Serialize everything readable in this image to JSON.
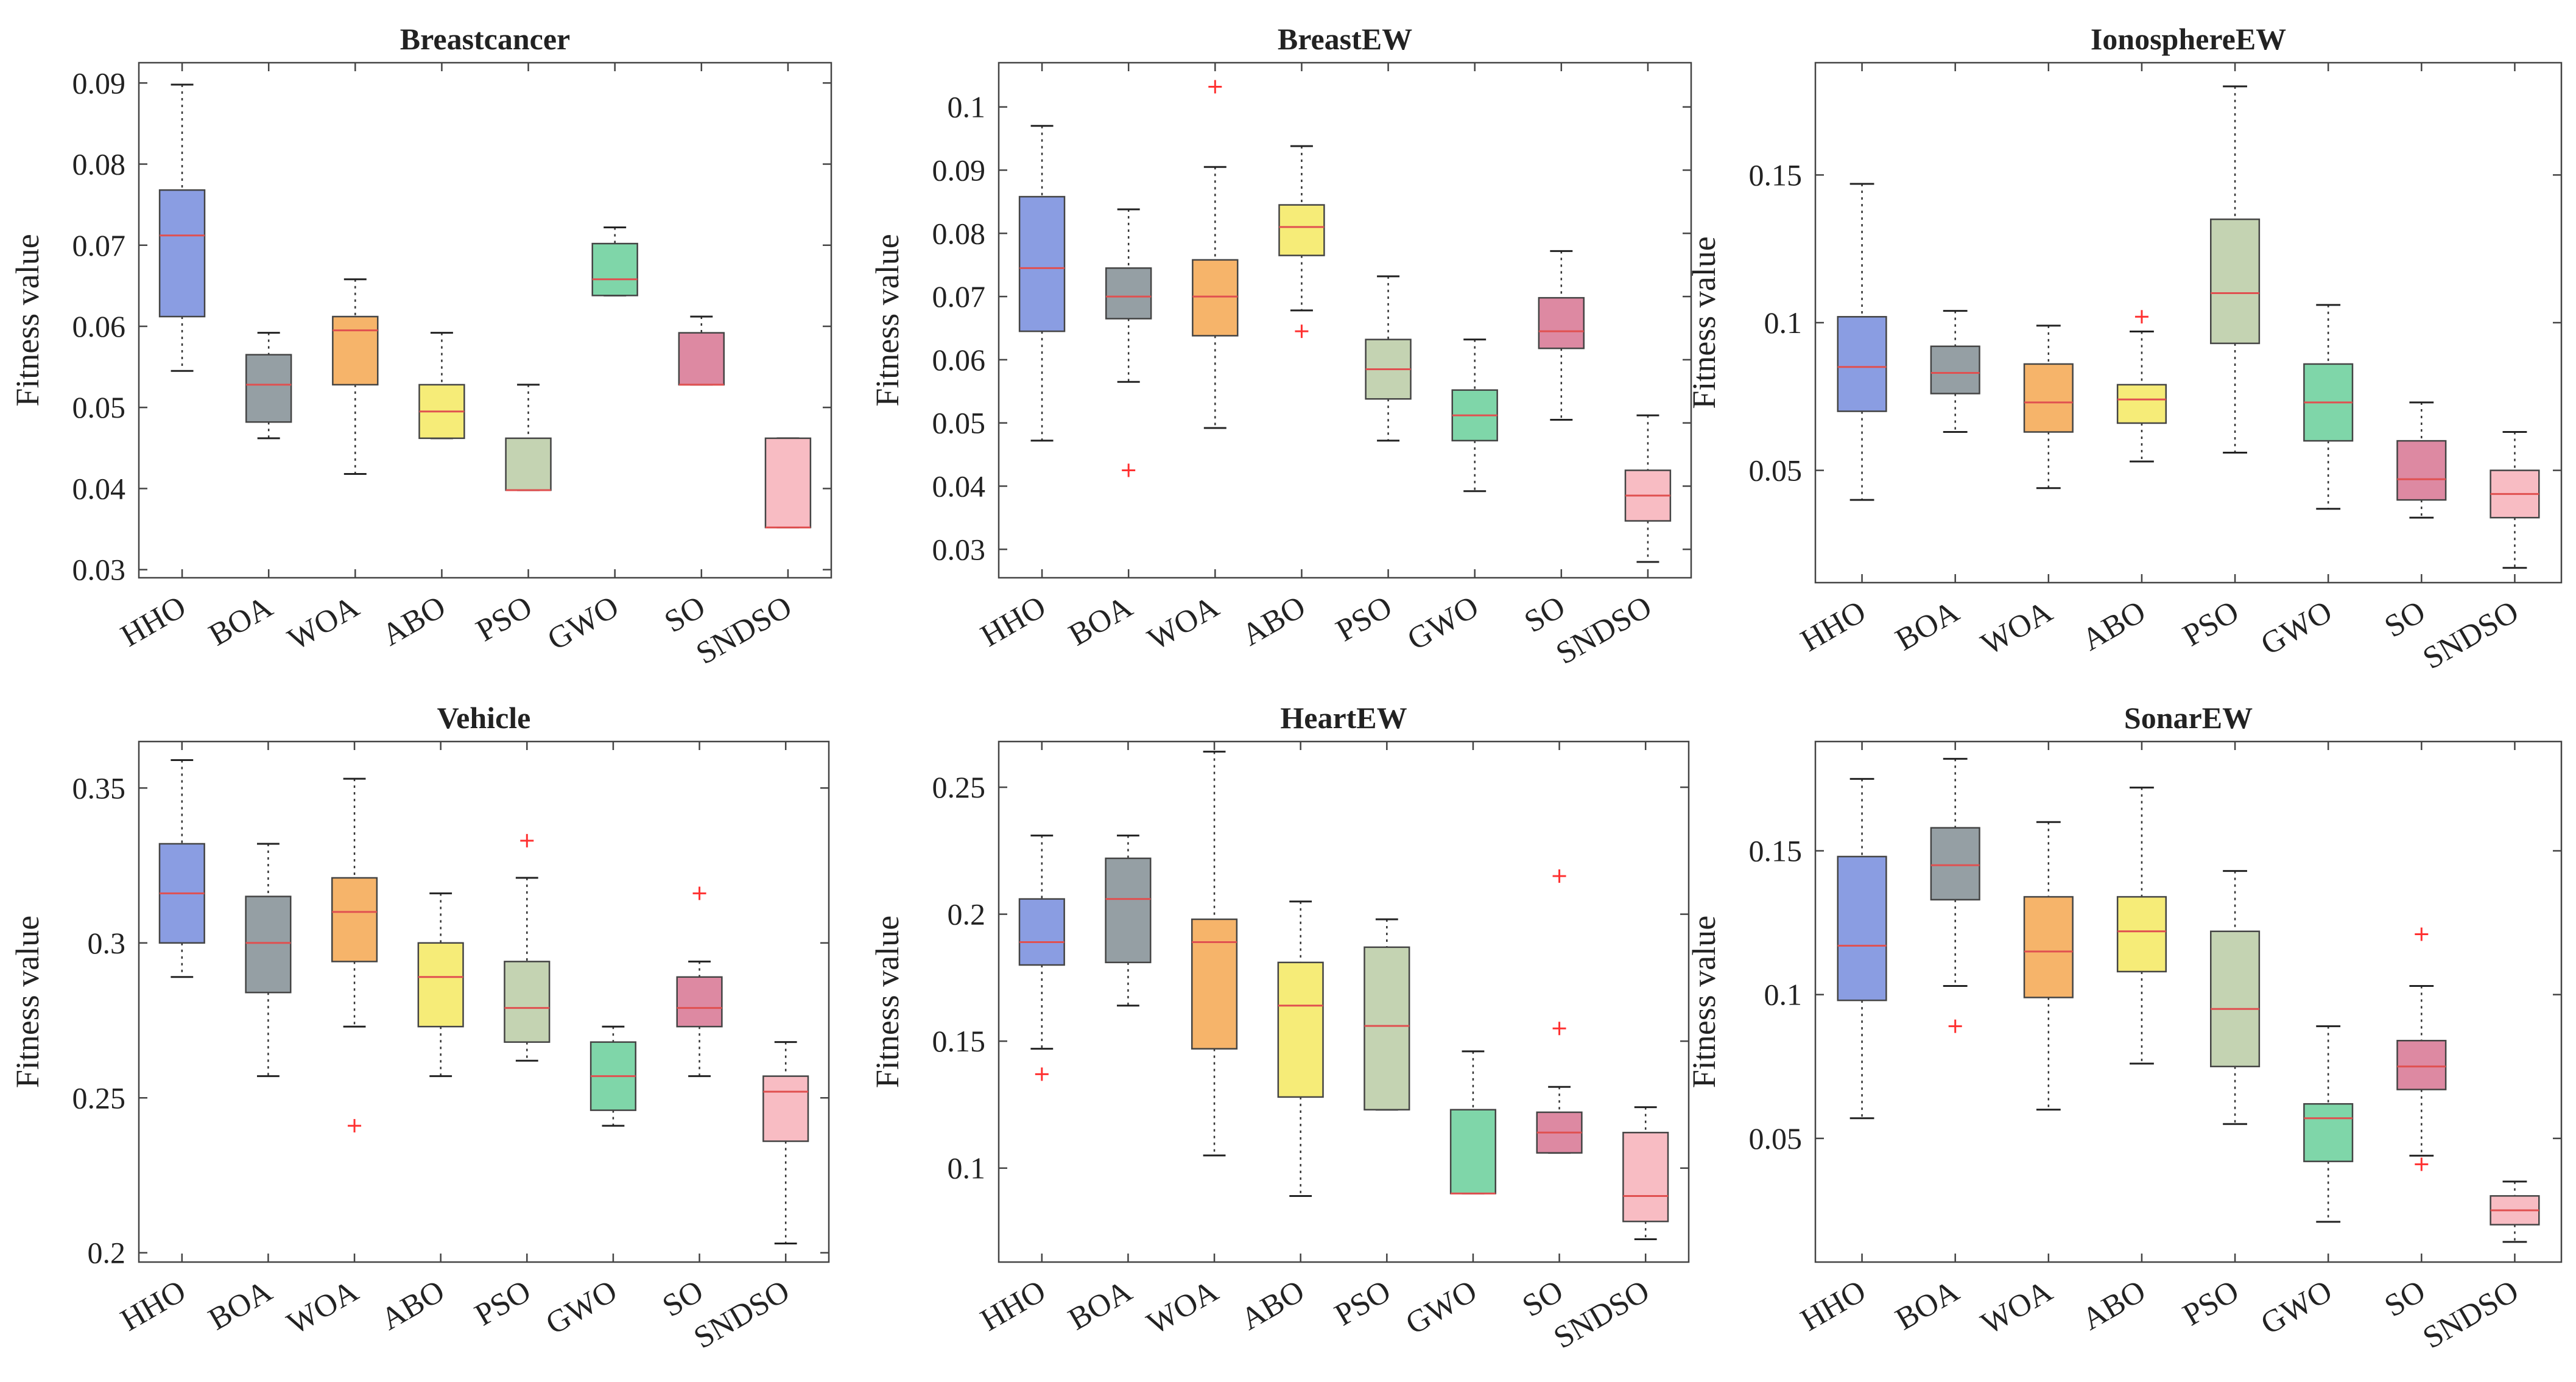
{
  "figure": {
    "layout": "2 rows x 3 columns",
    "median_color": "#e05050",
    "outlier_color": "#ff3030"
  },
  "chart_data": [
    {
      "type": "box",
      "title": "Breastcancer",
      "ylabel": "Fitness value",
      "ylim": [
        0.029,
        0.0925
      ],
      "yticks": [
        0.03,
        0.04,
        0.05,
        0.06,
        0.07,
        0.08,
        0.09
      ],
      "ytick_labels": [
        "0.03",
        "0.04",
        "0.05",
        "0.06",
        "0.07",
        "0.08",
        "0.09"
      ],
      "categories": [
        "HHO",
        "BOA",
        "WOA",
        "ABO",
        "PSO",
        "GWO",
        "SO",
        "SNDSO"
      ],
      "colors": [
        "#8a9de2",
        "#959fa4",
        "#f6b46a",
        "#f6ec78",
        "#c4d3b2",
        "#7fd6a9",
        "#dd89a2",
        "#f8bcc3"
      ],
      "boxes": [
        {
          "whisker_low": 0.0545,
          "q1": 0.0612,
          "median": 0.0712,
          "q3": 0.0768,
          "whisker_high": 0.0898,
          "outliers": []
        },
        {
          "whisker_low": 0.0462,
          "q1": 0.0482,
          "median": 0.0528,
          "q3": 0.0565,
          "whisker_high": 0.0592,
          "outliers": []
        },
        {
          "whisker_low": 0.0418,
          "q1": 0.0528,
          "median": 0.0595,
          "q3": 0.0612,
          "whisker_high": 0.0658,
          "outliers": []
        },
        {
          "whisker_low": 0.0462,
          "q1": 0.0462,
          "median": 0.0495,
          "q3": 0.0528,
          "whisker_high": 0.0592,
          "outliers": []
        },
        {
          "whisker_low": 0.0398,
          "q1": 0.0398,
          "median": 0.0398,
          "q3": 0.0462,
          "whisker_high": 0.0528,
          "outliers": []
        },
        {
          "whisker_low": 0.0638,
          "q1": 0.0638,
          "median": 0.0658,
          "q3": 0.0702,
          "whisker_high": 0.0722,
          "outliers": []
        },
        {
          "whisker_low": 0.0528,
          "q1": 0.0528,
          "median": 0.0528,
          "q3": 0.0592,
          "whisker_high": 0.0612,
          "outliers": []
        },
        {
          "whisker_low": 0.0352,
          "q1": 0.0352,
          "median": 0.0352,
          "q3": 0.0462,
          "whisker_high": 0.0462,
          "outliers": []
        }
      ]
    },
    {
      "type": "box",
      "title": "BreastEW",
      "ylabel": "Fitness value",
      "ylim": [
        0.0255,
        0.107
      ],
      "yticks": [
        0.03,
        0.04,
        0.05,
        0.06,
        0.07,
        0.08,
        0.09,
        0.1
      ],
      "ytick_labels": [
        "0.03",
        "0.04",
        "0.05",
        "0.06",
        "0.07",
        "0.08",
        "0.09",
        "0.1"
      ],
      "categories": [
        "HHO",
        "BOA",
        "WOA",
        "ABO",
        "PSO",
        "GWO",
        "SO",
        "SNDSO"
      ],
      "colors": [
        "#8a9de2",
        "#959fa4",
        "#f6b46a",
        "#f6ec78",
        "#c4d3b2",
        "#7fd6a9",
        "#dd89a2",
        "#f8bcc3"
      ],
      "boxes": [
        {
          "whisker_low": 0.0472,
          "q1": 0.0645,
          "median": 0.0745,
          "q3": 0.0858,
          "whisker_high": 0.097,
          "outliers": []
        },
        {
          "whisker_low": 0.0565,
          "q1": 0.0665,
          "median": 0.07,
          "q3": 0.0745,
          "whisker_high": 0.0838,
          "outliers": [
            0.0425
          ]
        },
        {
          "whisker_low": 0.0492,
          "q1": 0.0638,
          "median": 0.07,
          "q3": 0.0758,
          "whisker_high": 0.0905,
          "outliers": [
            0.1032
          ]
        },
        {
          "whisker_low": 0.0678,
          "q1": 0.0765,
          "median": 0.081,
          "q3": 0.0845,
          "whisker_high": 0.0938,
          "outliers": [
            0.0645
          ]
        },
        {
          "whisker_low": 0.0472,
          "q1": 0.0538,
          "median": 0.0585,
          "q3": 0.0632,
          "whisker_high": 0.0732,
          "outliers": []
        },
        {
          "whisker_low": 0.0392,
          "q1": 0.0472,
          "median": 0.0512,
          "q3": 0.0552,
          "whisker_high": 0.0632,
          "outliers": []
        },
        {
          "whisker_low": 0.0505,
          "q1": 0.0618,
          "median": 0.0645,
          "q3": 0.0698,
          "whisker_high": 0.0772,
          "outliers": []
        },
        {
          "whisker_low": 0.028,
          "q1": 0.0345,
          "median": 0.0385,
          "q3": 0.0425,
          "whisker_high": 0.0512,
          "outliers": []
        }
      ]
    },
    {
      "type": "box",
      "title": "IonosphereEW",
      "ylabel": "Fitness value",
      "ylim": [
        0.012,
        0.188
      ],
      "yticks": [
        0.05,
        0.1,
        0.15
      ],
      "ytick_labels": [
        "0.05",
        "0.1",
        "0.15"
      ],
      "categories": [
        "HHO",
        "BOA",
        "WOA",
        "ABO",
        "PSO",
        "GWO",
        "SO",
        "SNDSO"
      ],
      "colors": [
        "#8a9de2",
        "#959fa4",
        "#f6b46a",
        "#f6ec78",
        "#c4d3b2",
        "#7fd6a9",
        "#dd89a2",
        "#f8bcc3"
      ],
      "boxes": [
        {
          "whisker_low": 0.04,
          "q1": 0.07,
          "median": 0.085,
          "q3": 0.102,
          "whisker_high": 0.147,
          "outliers": []
        },
        {
          "whisker_low": 0.063,
          "q1": 0.076,
          "median": 0.083,
          "q3": 0.092,
          "whisker_high": 0.104,
          "outliers": []
        },
        {
          "whisker_low": 0.044,
          "q1": 0.063,
          "median": 0.073,
          "q3": 0.086,
          "whisker_high": 0.099,
          "outliers": []
        },
        {
          "whisker_low": 0.053,
          "q1": 0.066,
          "median": 0.074,
          "q3": 0.079,
          "whisker_high": 0.097,
          "outliers": [
            0.102
          ]
        },
        {
          "whisker_low": 0.056,
          "q1": 0.093,
          "median": 0.11,
          "q3": 0.135,
          "whisker_high": 0.18,
          "outliers": []
        },
        {
          "whisker_low": 0.037,
          "q1": 0.06,
          "median": 0.073,
          "q3": 0.086,
          "whisker_high": 0.106,
          "outliers": []
        },
        {
          "whisker_low": 0.034,
          "q1": 0.04,
          "median": 0.047,
          "q3": 0.06,
          "whisker_high": 0.073,
          "outliers": []
        },
        {
          "whisker_low": 0.017,
          "q1": 0.034,
          "median": 0.042,
          "q3": 0.05,
          "whisker_high": 0.063,
          "outliers": []
        }
      ]
    },
    {
      "type": "box",
      "title": "Vehicle",
      "ylabel": "Fitness value",
      "ylim": [
        0.197,
        0.365
      ],
      "yticks": [
        0.2,
        0.25,
        0.3,
        0.35
      ],
      "ytick_labels": [
        "0.2",
        "0.25",
        "0.3",
        "0.35"
      ],
      "categories": [
        "HHO",
        "BOA",
        "WOA",
        "ABO",
        "PSO",
        "GWO",
        "SO",
        "SNDSO"
      ],
      "colors": [
        "#8a9de2",
        "#959fa4",
        "#f6b46a",
        "#f6ec78",
        "#c4d3b2",
        "#7fd6a9",
        "#dd89a2",
        "#f8bcc3"
      ],
      "boxes": [
        {
          "whisker_low": 0.289,
          "q1": 0.3,
          "median": 0.316,
          "q3": 0.332,
          "whisker_high": 0.359,
          "outliers": []
        },
        {
          "whisker_low": 0.257,
          "q1": 0.284,
          "median": 0.3,
          "q3": 0.315,
          "whisker_high": 0.332,
          "outliers": []
        },
        {
          "whisker_low": 0.273,
          "q1": 0.294,
          "median": 0.31,
          "q3": 0.321,
          "whisker_high": 0.353,
          "outliers": [
            0.241
          ]
        },
        {
          "whisker_low": 0.257,
          "q1": 0.273,
          "median": 0.289,
          "q3": 0.3,
          "whisker_high": 0.316,
          "outliers": []
        },
        {
          "whisker_low": 0.262,
          "q1": 0.268,
          "median": 0.279,
          "q3": 0.294,
          "whisker_high": 0.321,
          "outliers": [
            0.333
          ]
        },
        {
          "whisker_low": 0.241,
          "q1": 0.246,
          "median": 0.257,
          "q3": 0.268,
          "whisker_high": 0.273,
          "outliers": []
        },
        {
          "whisker_low": 0.257,
          "q1": 0.273,
          "median": 0.279,
          "q3": 0.289,
          "whisker_high": 0.294,
          "outliers": [
            0.316
          ]
        },
        {
          "whisker_low": 0.203,
          "q1": 0.236,
          "median": 0.252,
          "q3": 0.257,
          "whisker_high": 0.268,
          "outliers": []
        }
      ]
    },
    {
      "type": "box",
      "title": "HeartEW",
      "ylabel": "Fitness value",
      "ylim": [
        0.063,
        0.268
      ],
      "yticks": [
        0.1,
        0.15,
        0.2,
        0.25
      ],
      "ytick_labels": [
        "0.1",
        "0.15",
        "0.2",
        "0.25"
      ],
      "categories": [
        "HHO",
        "BOA",
        "WOA",
        "ABO",
        "PSO",
        "GWO",
        "SO",
        "SNDSO"
      ],
      "colors": [
        "#8a9de2",
        "#959fa4",
        "#f6b46a",
        "#f6ec78",
        "#c4d3b2",
        "#7fd6a9",
        "#dd89a2",
        "#f8bcc3"
      ],
      "boxes": [
        {
          "whisker_low": 0.147,
          "q1": 0.18,
          "median": 0.189,
          "q3": 0.206,
          "whisker_high": 0.231,
          "outliers": [
            0.137
          ]
        },
        {
          "whisker_low": 0.164,
          "q1": 0.181,
          "median": 0.206,
          "q3": 0.222,
          "whisker_high": 0.231,
          "outliers": []
        },
        {
          "whisker_low": 0.105,
          "q1": 0.147,
          "median": 0.189,
          "q3": 0.198,
          "whisker_high": 0.264,
          "outliers": []
        },
        {
          "whisker_low": 0.089,
          "q1": 0.128,
          "median": 0.164,
          "q3": 0.181,
          "whisker_high": 0.205,
          "outliers": []
        },
        {
          "whisker_low": 0.123,
          "q1": 0.123,
          "median": 0.156,
          "q3": 0.187,
          "whisker_high": 0.198,
          "outliers": []
        },
        {
          "whisker_low": 0.09,
          "q1": 0.09,
          "median": 0.09,
          "q3": 0.123,
          "whisker_high": 0.146,
          "outliers": []
        },
        {
          "whisker_low": 0.106,
          "q1": 0.106,
          "median": 0.114,
          "q3": 0.122,
          "whisker_high": 0.132,
          "outliers": [
            0.155,
            0.215
          ]
        },
        {
          "whisker_low": 0.072,
          "q1": 0.079,
          "median": 0.089,
          "q3": 0.114,
          "whisker_high": 0.124,
          "outliers": []
        }
      ]
    },
    {
      "type": "box",
      "title": "SonarEW",
      "ylabel": "Fitness value",
      "ylim": [
        0.007,
        0.188
      ],
      "yticks": [
        0.05,
        0.1,
        0.15
      ],
      "ytick_labels": [
        "0.05",
        "0.1",
        "0.15"
      ],
      "categories": [
        "HHO",
        "BOA",
        "WOA",
        "ABO",
        "PSO",
        "GWO",
        "SO",
        "SNDSO"
      ],
      "colors": [
        "#8a9de2",
        "#959fa4",
        "#f6b46a",
        "#f6ec78",
        "#c4d3b2",
        "#7fd6a9",
        "#dd89a2",
        "#f8bcc3"
      ],
      "boxes": [
        {
          "whisker_low": 0.057,
          "q1": 0.098,
          "median": 0.117,
          "q3": 0.148,
          "whisker_high": 0.175,
          "outliers": []
        },
        {
          "whisker_low": 0.103,
          "q1": 0.133,
          "median": 0.145,
          "q3": 0.158,
          "whisker_high": 0.182,
          "outliers": [
            0.089
          ]
        },
        {
          "whisker_low": 0.06,
          "q1": 0.099,
          "median": 0.115,
          "q3": 0.134,
          "whisker_high": 0.16,
          "outliers": []
        },
        {
          "whisker_low": 0.076,
          "q1": 0.108,
          "median": 0.122,
          "q3": 0.134,
          "whisker_high": 0.172,
          "outliers": []
        },
        {
          "whisker_low": 0.055,
          "q1": 0.075,
          "median": 0.095,
          "q3": 0.122,
          "whisker_high": 0.143,
          "outliers": []
        },
        {
          "whisker_low": 0.021,
          "q1": 0.042,
          "median": 0.057,
          "q3": 0.062,
          "whisker_high": 0.089,
          "outliers": []
        },
        {
          "whisker_low": 0.044,
          "q1": 0.067,
          "median": 0.075,
          "q3": 0.084,
          "whisker_high": 0.103,
          "outliers": [
            0.041,
            0.121
          ]
        },
        {
          "whisker_low": 0.014,
          "q1": 0.02,
          "median": 0.025,
          "q3": 0.03,
          "whisker_high": 0.035,
          "outliers": []
        }
      ]
    }
  ]
}
